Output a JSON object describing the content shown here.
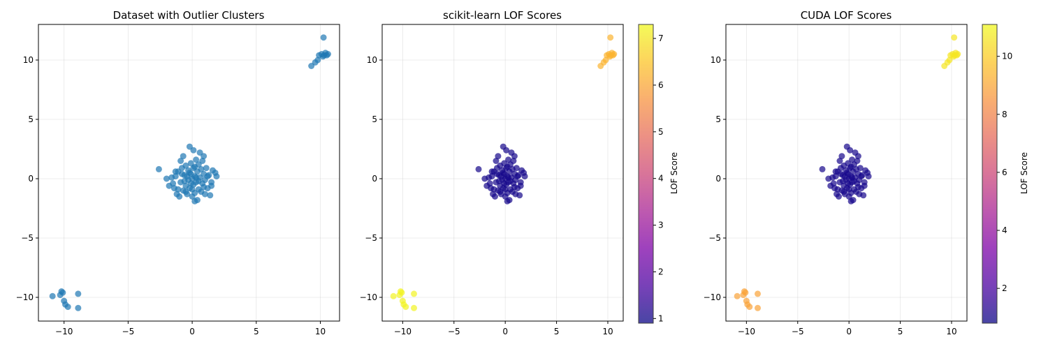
{
  "chart_data": [
    {
      "type": "scatter",
      "title": "Dataset with Outlier Clusters",
      "xlim": [
        -12,
        11.5
      ],
      "ylim": [
        -12,
        13
      ],
      "xticks": [
        -10,
        -5,
        0,
        5,
        10
      ],
      "yticks": [
        -10,
        -5,
        0,
        5,
        10
      ],
      "xtick_labels": [
        "−10",
        "−5",
        "0",
        "5",
        "10"
      ],
      "ytick_labels": [
        "−10",
        "−5",
        "0",
        "5",
        "10"
      ],
      "grid": true,
      "color_mode": "single",
      "point_color": "#1f77b4",
      "colorbar": null
    },
    {
      "type": "scatter",
      "title": "scikit-learn LOF Scores",
      "xlim": [
        -12,
        11.5
      ],
      "ylim": [
        -12,
        13
      ],
      "xticks": [
        -10,
        -5,
        0,
        5,
        10
      ],
      "yticks": [
        -10,
        -5,
        0,
        5,
        10
      ],
      "xtick_labels": [
        "−10",
        "−5",
        "0",
        "5",
        "10"
      ],
      "ytick_labels": [
        "−10",
        "−5",
        "0",
        "5",
        "10"
      ],
      "grid": true,
      "color_mode": "score",
      "colormap": "plasma",
      "colorbar": {
        "label": "LOF Score",
        "range": [
          0.9,
          7.3
        ],
        "ticks": [
          1,
          2,
          3,
          4,
          5,
          6,
          7
        ],
        "tick_labels": [
          "1",
          "2",
          "3",
          "4",
          "5",
          "6",
          "7"
        ]
      },
      "cluster_scores": {
        "center": 1.0,
        "upper_right": 6.2,
        "lower_left": 7.2
      }
    },
    {
      "type": "scatter",
      "title": "CUDA LOF Scores",
      "xlim": [
        -12,
        11.5
      ],
      "ylim": [
        -12,
        13
      ],
      "xticks": [
        -10,
        -5,
        0,
        5,
        10
      ],
      "yticks": [
        -10,
        -5,
        0,
        5,
        10
      ],
      "xtick_labels": [
        "−10",
        "−5",
        "0",
        "5",
        "10"
      ],
      "ytick_labels": [
        "−10",
        "−5",
        "0",
        "5",
        "10"
      ],
      "grid": true,
      "color_mode": "score",
      "colormap": "plasma",
      "colorbar": {
        "label": "LOF Score",
        "range": [
          0.8,
          11.1
        ],
        "ticks": [
          2,
          4,
          6,
          8,
          10
        ],
        "tick_labels": [
          "2",
          "4",
          "6",
          "8",
          "10"
        ]
      },
      "cluster_scores": {
        "center": 1.0,
        "upper_right": 10.6,
        "lower_left": 8.9
      }
    }
  ],
  "points": {
    "upper_right": [
      [
        9.3,
        9.5
      ],
      [
        9.6,
        9.8
      ],
      [
        9.8,
        10.0
      ],
      [
        9.9,
        10.4
      ],
      [
        10.1,
        10.5
      ],
      [
        10.2,
        10.3
      ],
      [
        10.3,
        10.4
      ],
      [
        10.4,
        10.6
      ],
      [
        10.5,
        10.4
      ],
      [
        10.6,
        10.5
      ],
      [
        10.25,
        11.9
      ]
    ],
    "lower_left": [
      [
        -10.9,
        -9.9
      ],
      [
        -10.3,
        -9.8
      ],
      [
        -10.2,
        -9.5
      ],
      [
        -10.1,
        -9.6
      ],
      [
        -10.0,
        -10.3
      ],
      [
        -9.9,
        -10.6
      ],
      [
        -9.7,
        -10.8
      ],
      [
        -8.9,
        -9.7
      ],
      [
        -8.9,
        -10.9
      ]
    ],
    "center": [
      [
        -2.6,
        0.8
      ],
      [
        -2.0,
        0.0
      ],
      [
        -1.8,
        -0.6
      ],
      [
        -1.6,
        0.1
      ],
      [
        -1.5,
        -0.4
      ],
      [
        -1.4,
        -0.8
      ],
      [
        -1.3,
        0.2
      ],
      [
        -1.2,
        -1.3
      ],
      [
        -1.1,
        0.6
      ],
      [
        -1.0,
        -1.5
      ],
      [
        -0.9,
        1.5
      ],
      [
        -0.9,
        -0.3
      ],
      [
        -0.8,
        0.9
      ],
      [
        -0.7,
        -1.0
      ],
      [
        -0.7,
        1.9
      ],
      [
        -0.6,
        0.3
      ],
      [
        -0.5,
        -0.6
      ],
      [
        -0.5,
        1.1
      ],
      [
        -0.4,
        -1.3
      ],
      [
        -0.3,
        0.7
      ],
      [
        -0.3,
        -0.1
      ],
      [
        -0.2,
        2.7
      ],
      [
        -0.2,
        -0.8
      ],
      [
        -0.1,
        1.3
      ],
      [
        -0.1,
        0.4
      ],
      [
        0.0,
        -1.5
      ],
      [
        0.0,
        0.0
      ],
      [
        0.1,
        2.4
      ],
      [
        0.1,
        -0.5
      ],
      [
        0.1,
        0.9
      ],
      [
        0.2,
        -1.9
      ],
      [
        0.2,
        -1.2
      ],
      [
        0.2,
        0.2
      ],
      [
        0.3,
        1.6
      ],
      [
        0.3,
        -0.3
      ],
      [
        0.4,
        -1.8
      ],
      [
        0.4,
        0.6
      ],
      [
        0.5,
        -0.9
      ],
      [
        0.5,
        1.2
      ],
      [
        0.6,
        0.1
      ],
      [
        0.6,
        2.2
      ],
      [
        0.7,
        -1.1
      ],
      [
        0.7,
        0.8
      ],
      [
        0.8,
        -0.4
      ],
      [
        0.8,
        1.5
      ],
      [
        0.9,
        0.4
      ],
      [
        0.9,
        1.9
      ],
      [
        1.0,
        -1.3
      ],
      [
        1.0,
        -0.1
      ],
      [
        1.1,
        0.9
      ],
      [
        1.2,
        -0.8
      ],
      [
        1.3,
        0.3
      ],
      [
        1.4,
        -1.4
      ],
      [
        1.5,
        -0.6
      ],
      [
        1.5,
        -0.3
      ],
      [
        1.6,
        0.7
      ],
      [
        1.8,
        0.5
      ],
      [
        1.9,
        0.2
      ],
      [
        -1.1,
        -0.9
      ],
      [
        -0.6,
        -0.2
      ],
      [
        0.3,
        0.1
      ],
      [
        -0.2,
        0.5
      ],
      [
        0.5,
        -0.2
      ],
      [
        -0.4,
        0.2
      ],
      [
        0.0,
        -0.9
      ],
      [
        -0.8,
        0.4
      ],
      [
        0.9,
        -0.7
      ],
      [
        -1.3,
        0.6
      ],
      [
        0.2,
        1.0
      ],
      [
        -0.5,
        -1.1
      ],
      [
        1.2,
        0.2
      ],
      [
        -0.1,
        -0.4
      ]
    ]
  }
}
